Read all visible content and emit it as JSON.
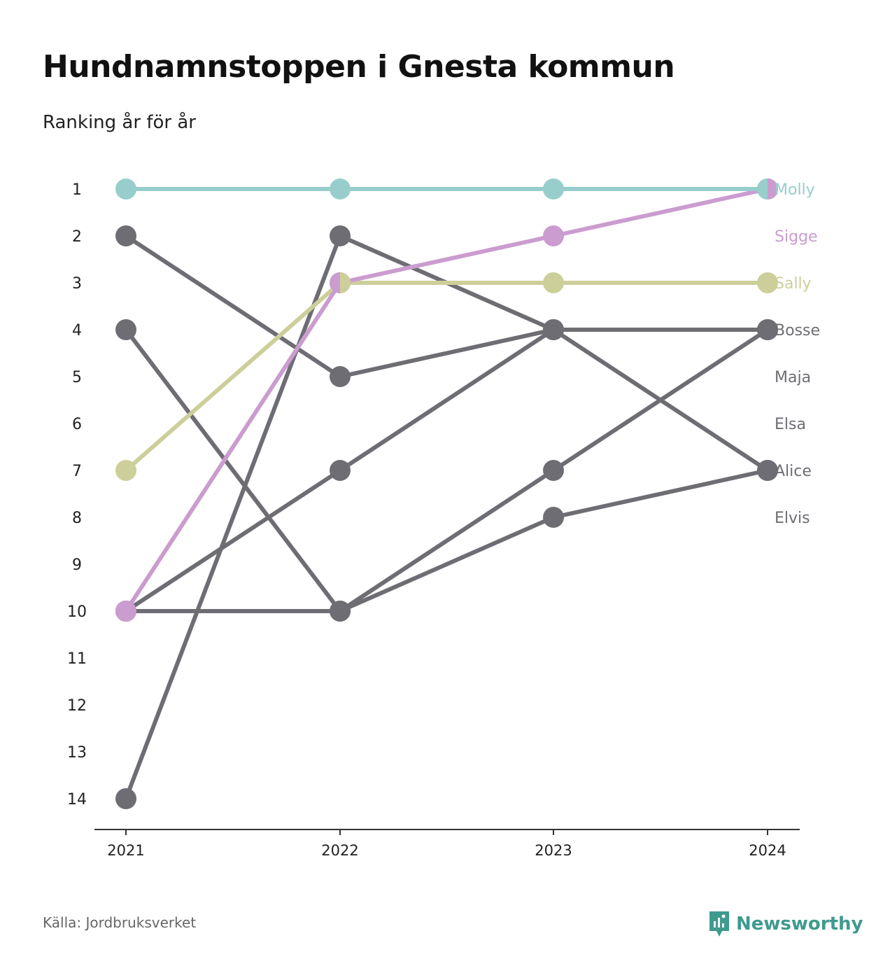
{
  "title": "Hundnamnstoppen i Gnesta kommun",
  "subtitle": "Ranking år för år",
  "source": "Källa: Jordbruksverket",
  "brand": "Newsworthy",
  "brand_color": "#3f9a8f",
  "chart_data": {
    "type": "line",
    "subtype": "bump",
    "title": "Hundnamnstoppen i Gnesta kommun",
    "subtitle": "Ranking år för år",
    "x": [
      "2021",
      "2022",
      "2023",
      "2024"
    ],
    "y_ticks": [
      "1",
      "2",
      "3",
      "4",
      "5",
      "6",
      "7",
      "8",
      "9",
      "10",
      "11",
      "12",
      "13",
      "14"
    ],
    "ylim": [
      1,
      14
    ],
    "y_reversed": true,
    "grid": false,
    "series": [
      {
        "name": "Bosse",
        "values": [
          2,
          5,
          4,
          4
        ],
        "color": "#6e6d74"
      },
      {
        "name": "Maja",
        "values": [
          10,
          7,
          4,
          4
        ],
        "color": "#6e6d74"
      },
      {
        "name": "Elsa",
        "values": [
          14,
          2,
          4,
          7
        ],
        "color": "#6e6d74"
      },
      {
        "name": "Alice",
        "values": [
          10,
          10,
          7,
          4
        ],
        "color": "#6e6d74"
      },
      {
        "name": "Elvis",
        "values": [
          4,
          10,
          8,
          7
        ],
        "color": "#6e6d74"
      },
      {
        "name": "Sally",
        "values": [
          7,
          3,
          3,
          3
        ],
        "color": "#cdcf9b"
      },
      {
        "name": "Sigge",
        "values": [
          10,
          3,
          2,
          1
        ],
        "color": "#cb9ccf"
      },
      {
        "name": "Molly",
        "values": [
          1,
          1,
          1,
          1
        ],
        "color": "#97cecc"
      }
    ],
    "end_labels": [
      {
        "name": "Molly",
        "rank": 1,
        "color": "#97cecc"
      },
      {
        "name": "Sigge",
        "rank": 2,
        "color": "#cb9ccf"
      },
      {
        "name": "Sally",
        "rank": 3,
        "color": "#cdcf9b"
      },
      {
        "name": "Bosse",
        "rank": 4,
        "color": "#6e6d74"
      },
      {
        "name": "Maja",
        "rank": 5,
        "color": "#6e6d74"
      },
      {
        "name": "Elsa",
        "rank": 6,
        "color": "#6e6d74"
      },
      {
        "name": "Alice",
        "rank": 7,
        "color": "#6e6d74"
      },
      {
        "name": "Elvis",
        "rank": 8,
        "color": "#6e6d74"
      }
    ]
  }
}
